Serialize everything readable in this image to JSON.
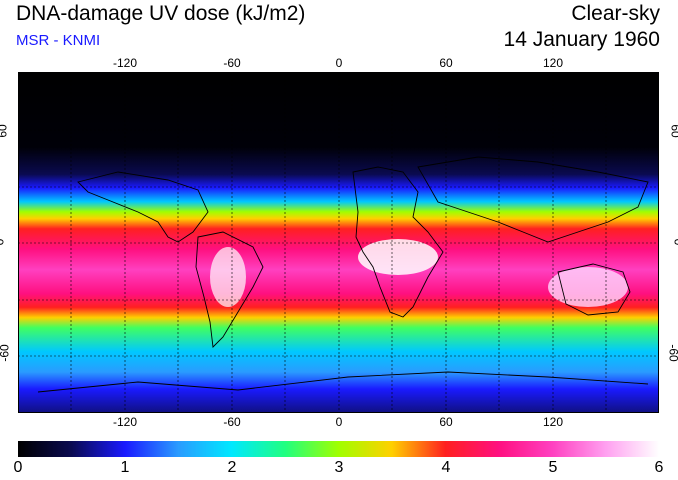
{
  "header": {
    "title": "DNA-damage UV dose (kJ/m2)",
    "source": "MSR - KNMI",
    "sky": "Clear-sky",
    "date": "14 January 1960"
  },
  "colors": {
    "source_text": "#1a1aff"
  },
  "map": {
    "lon_ticks": [
      "-120",
      "-60",
      "0",
      "60",
      "120"
    ],
    "lat_ticks_left": [
      "60",
      "0",
      "-60"
    ],
    "lat_ticks_right": [
      "60",
      "0",
      "-60"
    ],
    "palette": [
      {
        "v": 0,
        "c": "#000000"
      },
      {
        "v": 0.5,
        "c": "#0a0a50"
      },
      {
        "v": 1,
        "c": "#1a1aff"
      },
      {
        "v": 1.5,
        "c": "#2a9bff"
      },
      {
        "v": 2,
        "c": "#00e8ff"
      },
      {
        "v": 2.5,
        "c": "#20ff80"
      },
      {
        "v": 3,
        "c": "#a0ff00"
      },
      {
        "v": 3.5,
        "c": "#ffd000"
      },
      {
        "v": 4,
        "c": "#ff2020"
      },
      {
        "v": 4.5,
        "c": "#ff1080"
      },
      {
        "v": 5,
        "c": "#ff40c0"
      },
      {
        "v": 5.5,
        "c": "#ffa0f0"
      },
      {
        "v": 6,
        "c": "#ffffff"
      }
    ]
  },
  "colorbar": {
    "labels": [
      "0",
      "1",
      "2",
      "3",
      "4",
      "5",
      "6"
    ]
  }
}
